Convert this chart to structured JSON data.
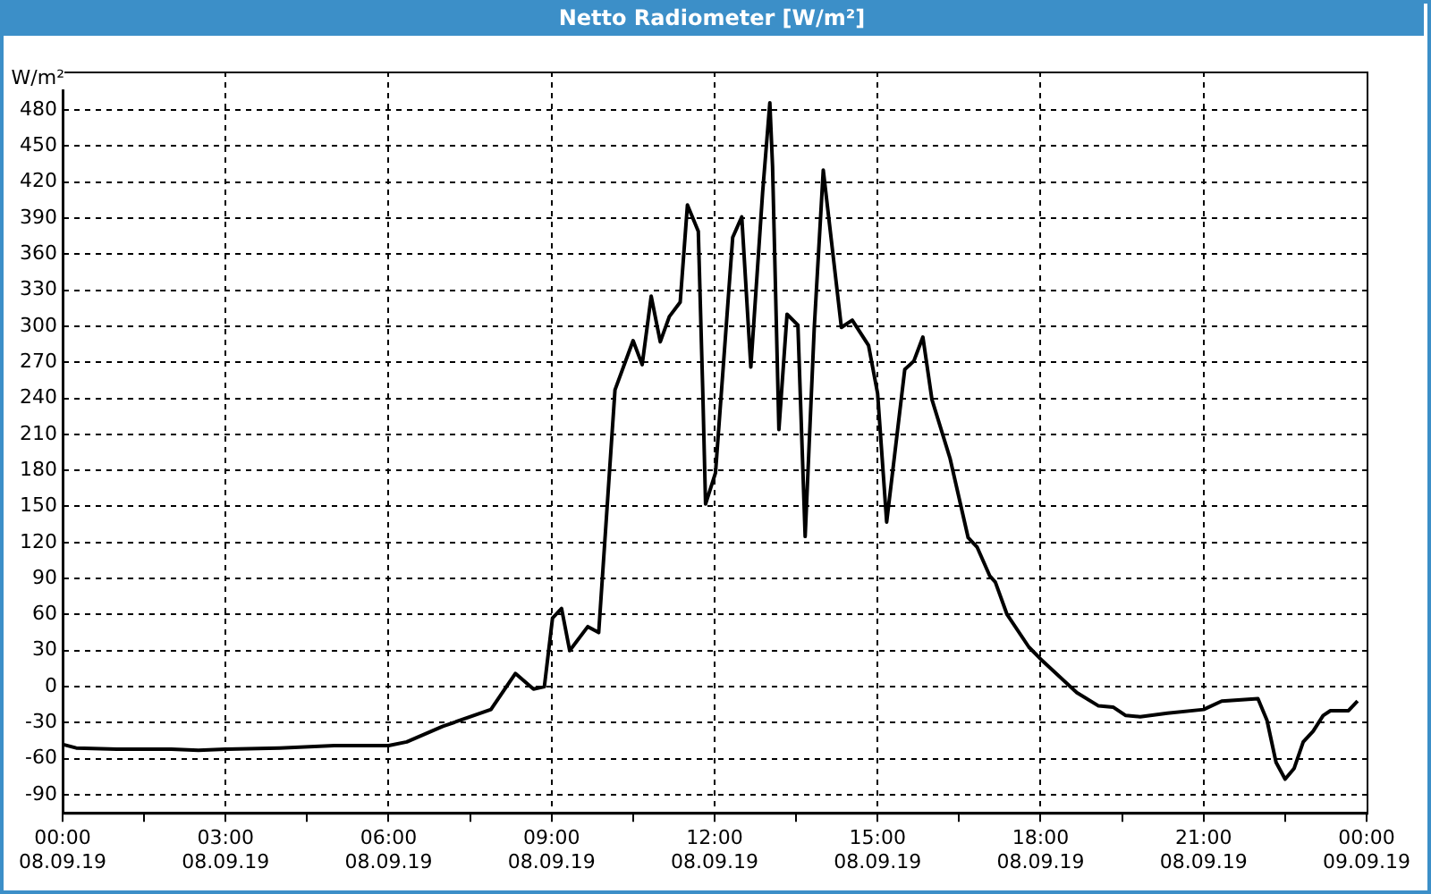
{
  "chart_data": {
    "type": "line",
    "title": "Netto Radiometer [W/m²]",
    "ylabel": "W/m²",
    "x": [
      "--09-08T00:00",
      "--09-08T00:15",
      "--09-08T01:00",
      "--09-08T02:00",
      "--09-08T02:30",
      "--09-08T03:00",
      "--09-08T04:00",
      "--09-08T05:00",
      "--09-08T06:00",
      "--09-08T06:20",
      "--09-08T07:00",
      "--09-08T07:53",
      "--09-08T08:20",
      "--09-08T08:40",
      "--09-08T08:52",
      "--09-08T09:01",
      "--09-08T09:11",
      "--09-08T09:20",
      "--09-08T09:40",
      "--09-08T09:52",
      "--09-08T10:10",
      "--09-08T10:30",
      "--09-08T10:40",
      "--09-08T10:50",
      "--09-08T11:00",
      "--09-08T11:10",
      "--09-08T11:22",
      "--09-08T11:30",
      "--09-08T11:42",
      "--09-08T11:47",
      "--09-08T11:50",
      "--09-08T12:01",
      "--09-08T12:20",
      "--09-08T12:30",
      "--09-08T12:40",
      "--09-08T12:53",
      "--09-08T13:01",
      "--09-08T13:04",
      "--09-08T13:11",
      "--09-08T13:20",
      "--09-08T13:32",
      "--09-08T13:40",
      "--09-08T13:50",
      "--09-08T14:00",
      "--09-08T14:20",
      "--09-08T14:32",
      "--09-08T14:50",
      "--09-08T15:00",
      "--09-08T15:10",
      "--09-08T15:30",
      "--09-08T15:40",
      "--09-08T15:50",
      "--09-08T16:00",
      "--09-08T16:20",
      "--09-08T16:40",
      "--09-08T16:50",
      "--09-08T17:04",
      "--09-08T17:10",
      "--09-08T17:23",
      "--09-08T17:47",
      "--09-08T18:00",
      "--09-08T18:40",
      "--09-08T19:04",
      "--09-08T19:20",
      "--09-08T19:34",
      "--09-08T19:50",
      "--09-08T20:20",
      "--09-08T21:00",
      "--09-08T21:20",
      "--09-08T22:00",
      "--09-08T22:10",
      "--09-08T22:20",
      "--09-08T22:30",
      "--09-08T22:40",
      "--09-08T22:50",
      "--09-08T23:01",
      "--09-08T23:12",
      "--09-08T23:20",
      "--09-08T23:40",
      "--09-08T23:50"
    ],
    "series": [
      {
        "color": "#000000",
        "values": [
          -48,
          -51,
          -52,
          -52,
          -53,
          -52,
          -51,
          -49,
          -49,
          -46,
          -33,
          -19,
          11,
          -2,
          0,
          57,
          65,
          30,
          50,
          45,
          247,
          288,
          268,
          325,
          287,
          308,
          320,
          401,
          379,
          244,
          152,
          178,
          374,
          391,
          266,
          411,
          486,
          433,
          214,
          310,
          301,
          125,
          298,
          430,
          299,
          305,
          284,
          244,
          137,
          264,
          271,
          291,
          239,
          190,
          124,
          116,
          92,
          87,
          60,
          33,
          23,
          -5,
          -16,
          -17,
          -24,
          -25,
          -22,
          -19,
          -12,
          -10,
          -28,
          -63,
          -77,
          -68,
          -46,
          -37,
          -24,
          -20,
          -20,
          -12
        ]
      }
    ],
    "xlim": [
      "--09-08T00:00",
      "--09-09T00:00"
    ],
    "xticks": [
      {
        "value": "--09-08T00:00",
        "label": "00:00\n08.09.19"
      },
      {
        "value": "--09-08T01:30",
        "label": null
      },
      {
        "value": "--09-08T03:00",
        "label": "03:00\n08.09.19"
      },
      {
        "value": "--09-08T04:30",
        "label": null
      },
      {
        "value": "--09-08T06:00",
        "label": "06:00\n08.09.19"
      },
      {
        "value": "--09-08T07:30",
        "label": null
      },
      {
        "value": "--09-08T09:00",
        "label": "09:00\n08.09.19"
      },
      {
        "value": "--09-08T10:30",
        "label": null
      },
      {
        "value": "--09-08T12:00",
        "label": "12:00\n08.09.19"
      },
      {
        "value": "--09-08T13:30",
        "label": null
      },
      {
        "value": "--09-08T15:00",
        "label": "15:00\n08.09.19"
      },
      {
        "value": "--09-08T16:30",
        "label": null
      },
      {
        "value": "--09-08T18:00",
        "label": "18:00\n08.09.19"
      },
      {
        "value": "--09-08T19:30",
        "label": null
      },
      {
        "value": "--09-08T21:00",
        "label": "21:00\n08.09.19"
      },
      {
        "value": "--09-08T22:30",
        "label": null
      },
      {
        "value": "--09-09T00:00",
        "label": "00:00\n09.09.19"
      }
    ],
    "ylim": [
      -105,
      512
    ],
    "yticks": [
      -90,
      -60,
      -30,
      0,
      30,
      60,
      90,
      120,
      150,
      180,
      210,
      240,
      270,
      300,
      330,
      360,
      390,
      420,
      450,
      480
    ],
    "grid": true,
    "legend": false,
    "marker": "none",
    "line_style": "solid"
  }
}
